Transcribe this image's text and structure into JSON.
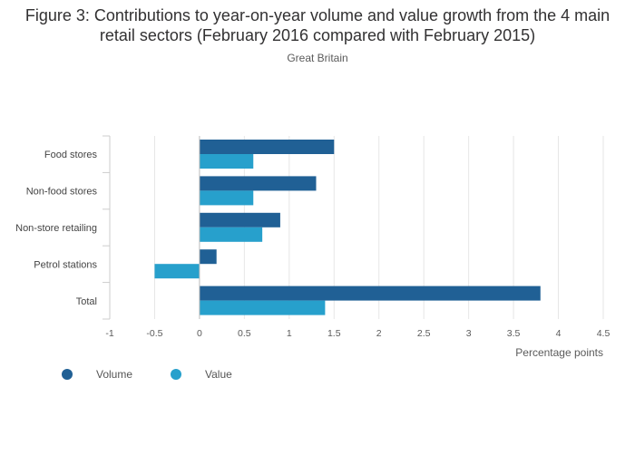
{
  "chart_data": {
    "type": "bar",
    "orientation": "horizontal",
    "title": "Figure 3: Contributions to year-on-year volume and value growth from the 4 main retail sectors (February 2016 compared with February 2015)",
    "subtitle": "Great Britain",
    "xlabel": "Percentage points",
    "ylabel": "",
    "xlim": [
      -1,
      4.5
    ],
    "xticks": [
      "-1",
      "-0.5",
      "0",
      "0.5",
      "1",
      "1.5",
      "2",
      "2.5",
      "3",
      "3.5",
      "4",
      "4.5"
    ],
    "grid": true,
    "legend_position": "bottom-left",
    "categories": [
      "Food stores",
      "Non-food stores",
      "Non-store retailing",
      "Petrol stations",
      "Total"
    ],
    "series": [
      {
        "name": "Volume",
        "color": "#206095",
        "values": [
          1.5,
          1.3,
          0.9,
          0.19,
          3.8
        ]
      },
      {
        "name": "Value",
        "color": "#27a0cc",
        "values": [
          0.6,
          0.6,
          0.7,
          -0.5,
          1.4
        ]
      }
    ]
  }
}
